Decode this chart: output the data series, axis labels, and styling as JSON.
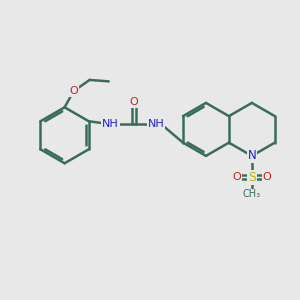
{
  "bg_color": "#e8e8e8",
  "bond_color": "#3a6b5f",
  "bond_width": 1.8,
  "N_color": "#2020cc",
  "O_color": "#cc2020",
  "S_color": "#bbbb00",
  "figsize": [
    3.0,
    3.0
  ],
  "dpi": 100,
  "xlim": [
    0,
    10
  ],
  "ylim": [
    0,
    10
  ]
}
